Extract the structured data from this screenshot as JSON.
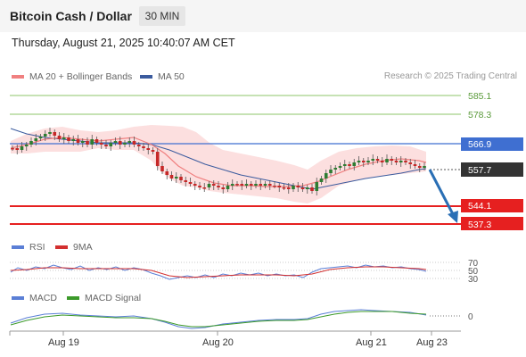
{
  "header": {
    "title": "Bitcoin Cash / Dollar",
    "timeframe": "30 MIN",
    "datetime": "Thursday, August 21, 2025 10:40:07 AM CET"
  },
  "legend": {
    "ma20": "MA 20 + Bollinger Bands",
    "ma50": "MA 50",
    "credit": "Research © 2025 Trading Central"
  },
  "levels": {
    "r2": "585.1",
    "r1": "578.3",
    "pivot": "566.9",
    "last": "557.7",
    "s1": "544.1",
    "s2": "537.3"
  },
  "rsi": {
    "label": "RSI",
    "ma_label": "9MA",
    "ticks": [
      "70",
      "50",
      "30"
    ]
  },
  "macd": {
    "label": "MACD",
    "signal_label": "MACD Signal",
    "zero": "0"
  },
  "xaxis": {
    "labels": [
      "Aug 19",
      "Aug 20",
      "Aug 21",
      "Aug 23"
    ]
  },
  "colors": {
    "ma20": "#f08080",
    "ma50": "#3b5b9e",
    "bands": "#fbd9d9",
    "up": "#2e7d32",
    "down": "#c62828",
    "pivot": "#3f6fd1",
    "support": "#e62020",
    "resistance": "#8ec66a",
    "arrow": "#2a6fb5",
    "rsi": "#5b7fd6",
    "rsi_ma": "#d32f2f",
    "macd": "#5b7fd6",
    "macd_signal": "#3c9a2a"
  }
}
